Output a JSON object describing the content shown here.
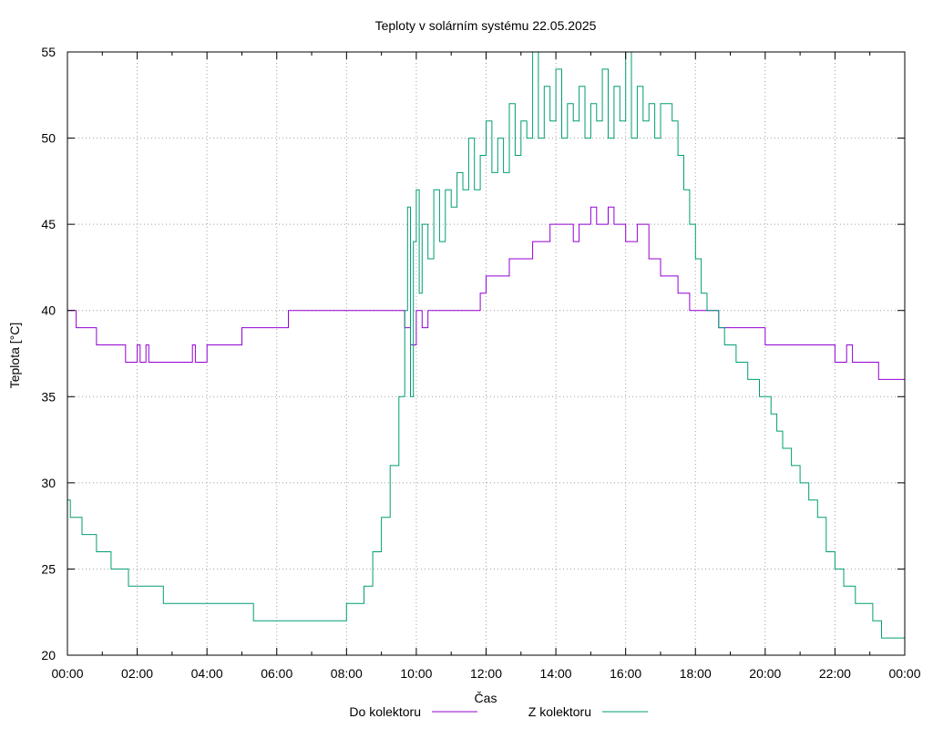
{
  "chart_data": {
    "type": "line",
    "title": "Teploty v solárním systému 22.05.2025",
    "xlabel": "Čas",
    "ylabel": "Teplota [°C]",
    "xlim": [
      "00:00",
      "24:00"
    ],
    "ylim": [
      20,
      55
    ],
    "grid": true,
    "legend_position": "bottom",
    "x_ticks": [
      "00:00",
      "02:00",
      "04:00",
      "06:00",
      "08:00",
      "10:00",
      "12:00",
      "14:00",
      "16:00",
      "18:00",
      "20:00",
      "22:00",
      "00:00"
    ],
    "y_ticks": [
      "20",
      "25",
      "30",
      "35",
      "40",
      "45",
      "50",
      "55"
    ],
    "series": [
      {
        "name": "Do kolektoru",
        "color": "#9400d3",
        "points": [
          [
            "00:00",
            40
          ],
          [
            "00:15",
            39
          ],
          [
            "00:50",
            38
          ],
          [
            "01:40",
            37
          ],
          [
            "02:00",
            38
          ],
          [
            "02:05",
            37
          ],
          [
            "02:15",
            38
          ],
          [
            "02:20",
            37
          ],
          [
            "03:35",
            38
          ],
          [
            "03:40",
            37
          ],
          [
            "04:00",
            38
          ],
          [
            "05:00",
            39
          ],
          [
            "06:20",
            40
          ],
          [
            "09:40",
            39
          ],
          [
            "09:50",
            38
          ],
          [
            "10:00",
            40
          ],
          [
            "10:10",
            39
          ],
          [
            "10:20",
            40
          ],
          [
            "11:50",
            41
          ],
          [
            "12:00",
            42
          ],
          [
            "12:40",
            43
          ],
          [
            "13:20",
            44
          ],
          [
            "13:50",
            45
          ],
          [
            "14:30",
            44
          ],
          [
            "14:40",
            45
          ],
          [
            "15:00",
            46
          ],
          [
            "15:10",
            45
          ],
          [
            "15:30",
            46
          ],
          [
            "15:40",
            45
          ],
          [
            "16:00",
            44
          ],
          [
            "16:20",
            45
          ],
          [
            "16:40",
            43
          ],
          [
            "17:00",
            42
          ],
          [
            "17:30",
            41
          ],
          [
            "17:50",
            40
          ],
          [
            "18:40",
            39
          ],
          [
            "19:00",
            39
          ],
          [
            "20:00",
            38
          ],
          [
            "22:00",
            37
          ],
          [
            "22:20",
            38
          ],
          [
            "22:30",
            37
          ],
          [
            "23:00",
            37
          ],
          [
            "23:15",
            36
          ],
          [
            "24:00",
            36
          ]
        ]
      },
      {
        "name": "Z kolektoru",
        "color": "#009e73",
        "points": [
          [
            "00:00",
            29
          ],
          [
            "00:05",
            28
          ],
          [
            "00:25",
            27
          ],
          [
            "00:50",
            26
          ],
          [
            "01:15",
            25
          ],
          [
            "01:45",
            24
          ],
          [
            "02:45",
            23
          ],
          [
            "05:20",
            22
          ],
          [
            "08:00",
            23
          ],
          [
            "08:30",
            24
          ],
          [
            "08:45",
            26
          ],
          [
            "09:00",
            28
          ],
          [
            "09:15",
            31
          ],
          [
            "09:30",
            35
          ],
          [
            "09:40",
            40
          ],
          [
            "09:45",
            46
          ],
          [
            "09:50",
            35
          ],
          [
            "09:55",
            44
          ],
          [
            "10:00",
            47
          ],
          [
            "10:05",
            41
          ],
          [
            "10:10",
            45
          ],
          [
            "10:20",
            43
          ],
          [
            "10:30",
            47
          ],
          [
            "10:40",
            44
          ],
          [
            "10:50",
            47
          ],
          [
            "11:00",
            46
          ],
          [
            "11:10",
            48
          ],
          [
            "11:20",
            47
          ],
          [
            "11:30",
            50
          ],
          [
            "11:40",
            47
          ],
          [
            "11:50",
            49
          ],
          [
            "12:00",
            51
          ],
          [
            "12:10",
            48
          ],
          [
            "12:20",
            50
          ],
          [
            "12:30",
            48
          ],
          [
            "12:40",
            52
          ],
          [
            "12:50",
            49
          ],
          [
            "13:00",
            51
          ],
          [
            "13:10",
            50
          ],
          [
            "13:20",
            55
          ],
          [
            "13:30",
            50
          ],
          [
            "13:40",
            53
          ],
          [
            "13:50",
            51
          ],
          [
            "14:00",
            54
          ],
          [
            "14:10",
            50
          ],
          [
            "14:20",
            52
          ],
          [
            "14:30",
            51
          ],
          [
            "14:40",
            53
          ],
          [
            "14:50",
            50
          ],
          [
            "15:00",
            52
          ],
          [
            "15:10",
            51
          ],
          [
            "15:20",
            54
          ],
          [
            "15:30",
            50
          ],
          [
            "15:40",
            53
          ],
          [
            "15:50",
            51
          ],
          [
            "16:00",
            56
          ],
          [
            "16:10",
            50
          ],
          [
            "16:20",
            53
          ],
          [
            "16:30",
            51
          ],
          [
            "16:40",
            52
          ],
          [
            "16:50",
            50
          ],
          [
            "17:00",
            52
          ],
          [
            "17:20",
            51
          ],
          [
            "17:30",
            49
          ],
          [
            "17:40",
            47
          ],
          [
            "17:50",
            45
          ],
          [
            "18:00",
            43
          ],
          [
            "18:10",
            41
          ],
          [
            "18:20",
            40
          ],
          [
            "18:40",
            39
          ],
          [
            "18:50",
            38
          ],
          [
            "19:10",
            37
          ],
          [
            "19:30",
            36
          ],
          [
            "19:50",
            35
          ],
          [
            "20:10",
            34
          ],
          [
            "20:20",
            33
          ],
          [
            "20:30",
            32
          ],
          [
            "20:45",
            31
          ],
          [
            "21:00",
            30
          ],
          [
            "21:15",
            29
          ],
          [
            "21:30",
            28
          ],
          [
            "21:45",
            26
          ],
          [
            "22:00",
            25
          ],
          [
            "22:15",
            24
          ],
          [
            "22:35",
            23
          ],
          [
            "23:05",
            22
          ],
          [
            "23:20",
            21
          ],
          [
            "24:00",
            21
          ]
        ]
      }
    ]
  }
}
